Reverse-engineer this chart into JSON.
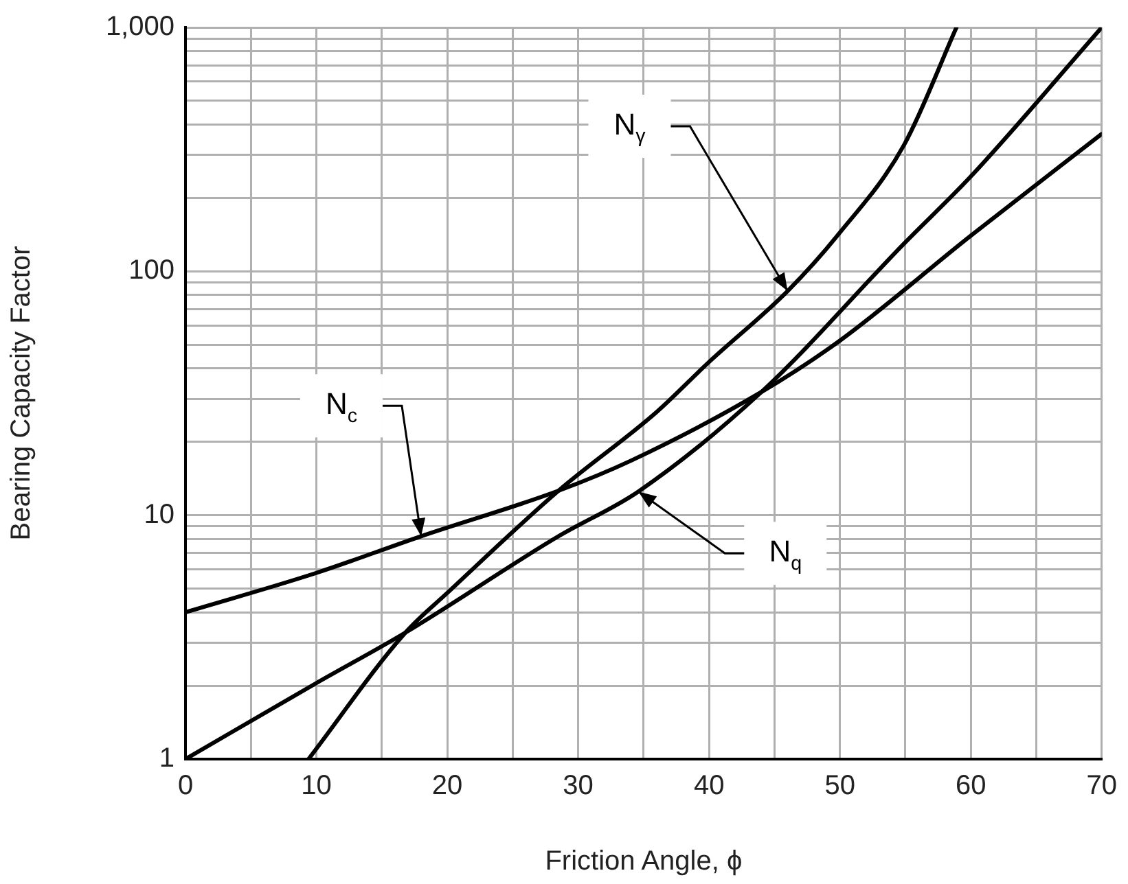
{
  "chart_data": {
    "type": "line",
    "xlabel": "Friction Angle, ϕ",
    "ylabel": "Bearing Capacity Factor",
    "log": "y",
    "grid": true,
    "legend": false,
    "marker": "none",
    "line_style": "solid",
    "xlim": [
      0,
      70
    ],
    "ylim": [
      1,
      1000
    ],
    "xticks": [
      0,
      {
        "value": 5,
        "label": null
      },
      10,
      {
        "value": 15,
        "label": null
      },
      20,
      {
        "value": 25,
        "label": null
      },
      30,
      {
        "value": 35,
        "label": null
      },
      40,
      {
        "value": 45,
        "label": null
      },
      50,
      {
        "value": 55,
        "label": null
      },
      60,
      {
        "value": 65,
        "label": null
      },
      70
    ],
    "yticks": [
      1,
      {
        "value": 2,
        "label": null
      },
      {
        "value": 3,
        "label": null
      },
      {
        "value": 4,
        "label": null
      },
      {
        "value": 5,
        "label": null
      },
      {
        "value": 6,
        "label": null
      },
      {
        "value": 7,
        "label": null
      },
      {
        "value": 8,
        "label": null
      },
      {
        "value": 9,
        "label": null
      },
      10,
      {
        "value": 20,
        "label": null
      },
      {
        "value": 30,
        "label": null
      },
      {
        "value": 40,
        "label": null
      },
      {
        "value": 50,
        "label": null
      },
      {
        "value": 60,
        "label": null
      },
      {
        "value": 70,
        "label": null
      },
      {
        "value": 80,
        "label": null
      },
      {
        "value": 90,
        "label": null
      },
      100,
      {
        "value": 200,
        "label": null
      },
      {
        "value": 300,
        "label": null
      },
      {
        "value": 400,
        "label": null
      },
      {
        "value": 500,
        "label": null
      },
      {
        "value": 600,
        "label": null
      },
      {
        "value": 700,
        "label": null
      },
      {
        "value": 800,
        "label": null
      },
      {
        "value": 900,
        "label": null
      },
      {
        "value": 1000,
        "label": "1,000"
      }
    ],
    "series": [
      {
        "color": "#000000",
        "x": [
          0,
          10,
          18,
          28.5,
          34.1,
          44,
          50,
          60,
          70
        ],
        "values": [
          4.0,
          5.8,
          8.2,
          12.6,
          16.8,
          32,
          52,
          140,
          366
        ]
      },
      {
        "color": "#000000",
        "x": [
          0,
          10,
          16.8,
          28.5,
          34.6,
          44,
          54.9,
          60,
          70
        ],
        "values": [
          1,
          2.05,
          3.3,
          8.2,
          12.5,
          32,
          130,
          245,
          1000
        ]
      },
      {
        "color": "#000000",
        "x": [
          9.4,
          16.8,
          20,
          28.5,
          36,
          40,
          46,
          49.8,
          54.9,
          58.9
        ],
        "values": [
          1,
          3.3,
          4.8,
          12.6,
          26.5,
          42.5,
          83,
          140,
          330,
          1000
        ]
      }
    ],
    "annotations": [
      {
        "text": "N$_{c}$",
        "x": 18,
        "y": 8.2
      },
      {
        "text": "N$_{q}$",
        "x": 34.6,
        "y": 12.5
      },
      {
        "text": "N$_{γ}$",
        "x": 46,
        "y": 83
      }
    ]
  }
}
